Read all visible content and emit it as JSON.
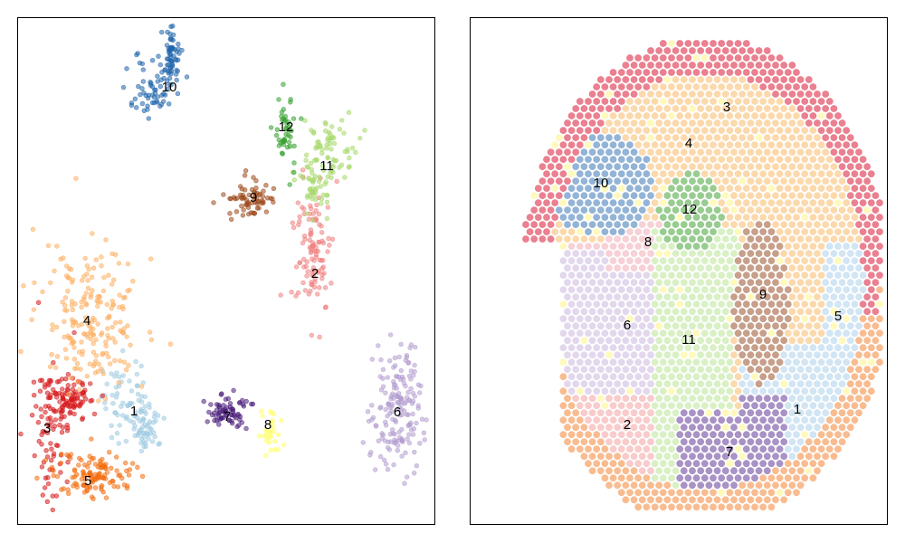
{
  "chart_data": [
    {
      "type": "scatter",
      "title": "",
      "xlabel": "",
      "ylabel": "",
      "grid": false,
      "legend": "none",
      "clusters": [
        {
          "label": "1",
          "color": "#9ecae1",
          "center": [
            0.28,
            0.25
          ]
        },
        {
          "label": "2",
          "color": "#f08080",
          "center": [
            0.71,
            0.5
          ]
        },
        {
          "label": "3",
          "color": "#d7191c",
          "center": [
            0.07,
            0.23
          ]
        },
        {
          "label": "4",
          "color": "#fdae61",
          "center": [
            0.16,
            0.41
          ]
        },
        {
          "label": "5",
          "color": "#f46d0f",
          "center": [
            0.17,
            0.09
          ]
        },
        {
          "label": "6",
          "color": "#b39ccf",
          "center": [
            0.91,
            0.22
          ]
        },
        {
          "label": "7",
          "color": "#4b1f7a",
          "center": [
            0.5,
            0.24
          ]
        },
        {
          "label": "8",
          "color": "#ffff66",
          "center": [
            0.6,
            0.21
          ]
        },
        {
          "label": "9",
          "color": "#9c4a1c",
          "center": [
            0.56,
            0.64
          ]
        },
        {
          "label": "10",
          "color": "#2166ac",
          "center": [
            0.35,
            0.86
          ]
        },
        {
          "label": "11",
          "color": "#a6d96a",
          "center": [
            0.74,
            0.71
          ]
        },
        {
          "label": "12",
          "color": "#33a02c",
          "center": [
            0.64,
            0.78
          ]
        }
      ]
    },
    {
      "type": "scatter",
      "title": "",
      "xlabel": "",
      "ylabel": "",
      "grid": false,
      "legend": "none",
      "clusters": [
        {
          "label": "1",
          "color": "#cfe4f3"
        },
        {
          "label": "2",
          "color": "#f9c8c8"
        },
        {
          "label": "3",
          "color": "#e9798a"
        },
        {
          "label": "4",
          "color": "#fcd7a8"
        },
        {
          "label": "5",
          "color": "#f9b88a"
        },
        {
          "label": "6",
          "color": "#e1d5ec"
        },
        {
          "label": "7",
          "color": "#a48cc2"
        },
        {
          "label": "8",
          "color": "#f7cfd4"
        },
        {
          "label": "9",
          "color": "#c49a84"
        },
        {
          "label": "10",
          "color": "#8db0d4"
        },
        {
          "label": "11",
          "color": "#d7efc2"
        },
        {
          "label": "12",
          "color": "#92c98a"
        }
      ],
      "background_color": "#fff9b8"
    }
  ]
}
